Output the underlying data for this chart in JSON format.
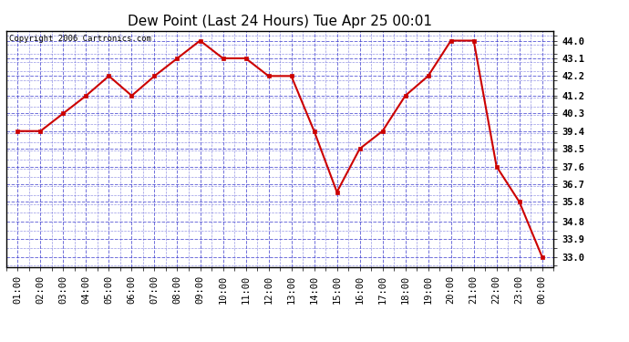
{
  "title": "Dew Point (Last 24 Hours) Tue Apr 25 00:01",
  "copyright": "Copyright 2006 Cartronics.com",
  "x_labels": [
    "01:00",
    "02:00",
    "03:00",
    "04:00",
    "05:00",
    "06:00",
    "07:00",
    "08:00",
    "09:00",
    "10:00",
    "11:00",
    "12:00",
    "13:00",
    "14:00",
    "15:00",
    "16:00",
    "17:00",
    "18:00",
    "19:00",
    "20:00",
    "21:00",
    "22:00",
    "23:00",
    "00:00"
  ],
  "y_values": [
    39.4,
    39.4,
    40.3,
    41.2,
    42.2,
    41.2,
    42.2,
    43.1,
    44.0,
    43.1,
    43.1,
    42.2,
    42.2,
    39.4,
    36.3,
    38.5,
    39.4,
    41.2,
    42.2,
    44.0,
    44.0,
    37.6,
    35.8,
    33.0
  ],
  "ylim_min": 33.0,
  "ylim_max": 44.0,
  "y_ticks": [
    33.0,
    33.9,
    34.8,
    35.8,
    36.7,
    37.6,
    38.5,
    39.4,
    40.3,
    41.2,
    42.2,
    43.1,
    44.0
  ],
  "line_color": "#cc0000",
  "marker": "s",
  "marker_size": 3,
  "bg_color": "#ffffff",
  "plot_bg": "#ffffff",
  "grid_color": "#3333cc",
  "grid_style": "--",
  "title_fontsize": 11,
  "copyright_fontsize": 6.5,
  "tick_fontsize": 7.5,
  "border_color": "#000000"
}
